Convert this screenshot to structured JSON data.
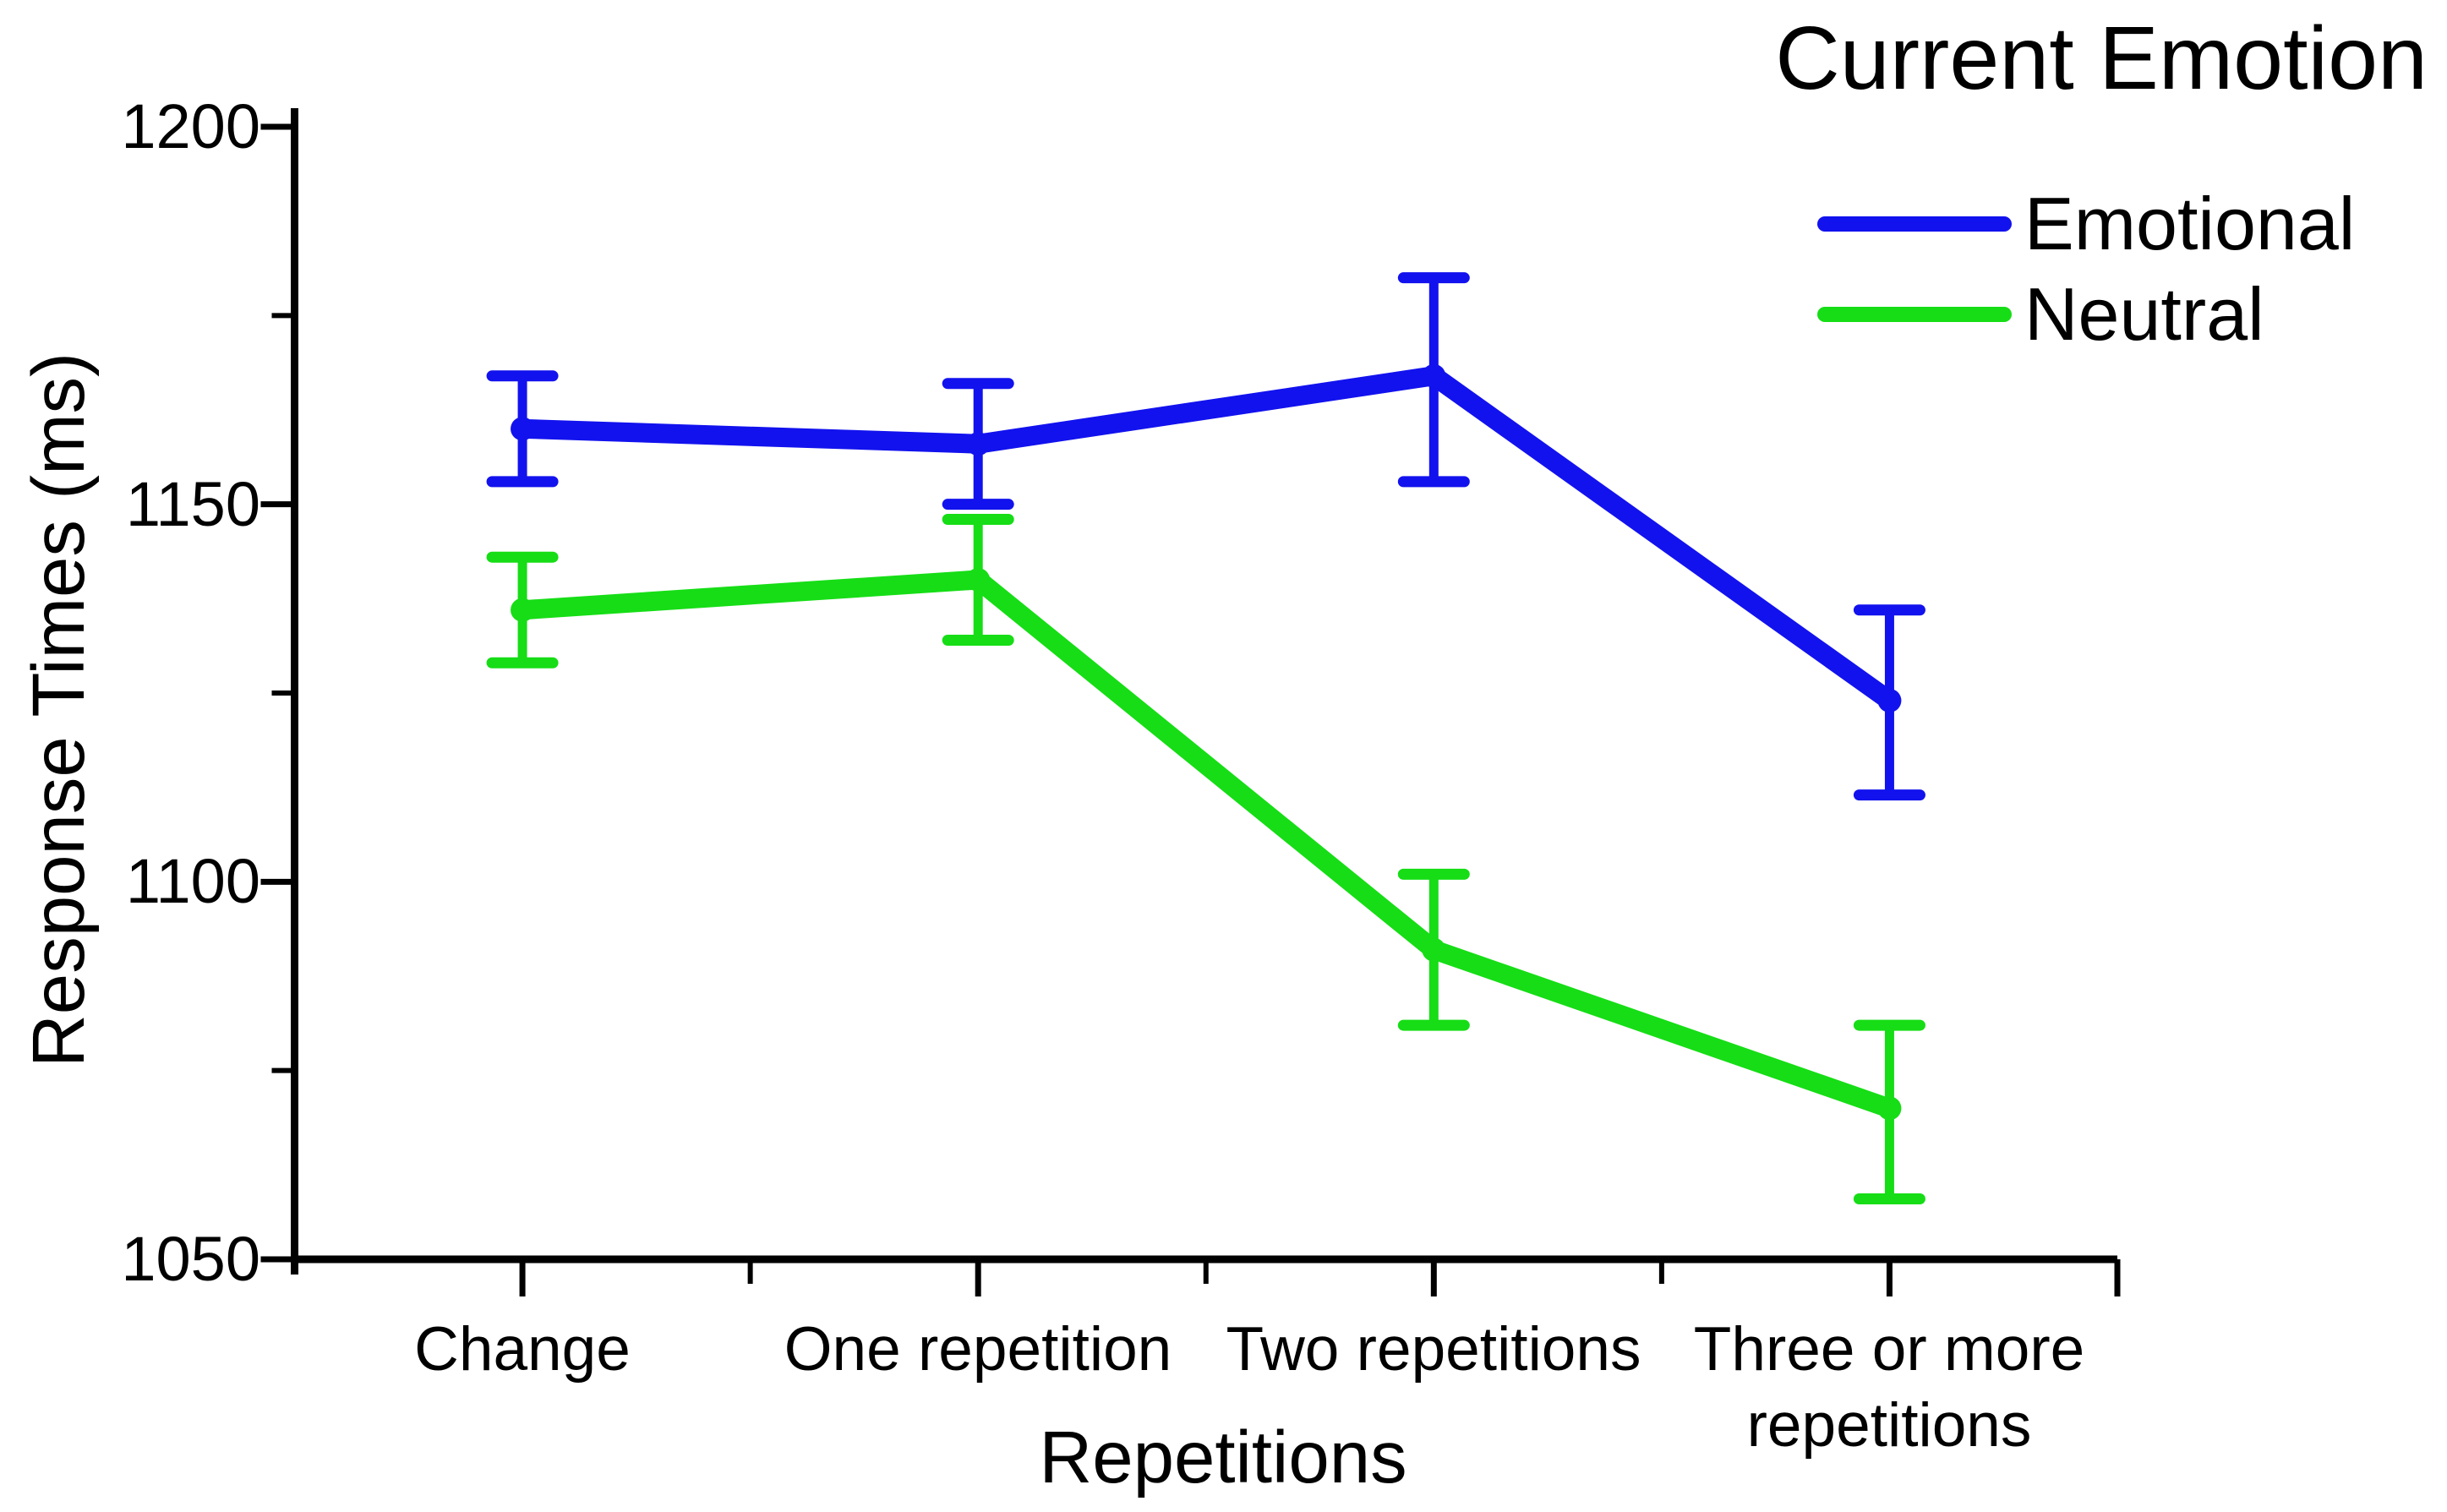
{
  "chart_data": {
    "type": "line",
    "legend_title": "Current Emotion",
    "xlabel": "Repetitions",
    "ylabel": "Response Times (ms)",
    "categories": [
      "Change",
      "One repetition",
      "Two repetitions",
      "Three or more repetitions"
    ],
    "x_tick_labels": [
      [
        "Change"
      ],
      [
        "One repetition"
      ],
      [
        "Two repetitions"
      ],
      [
        "Three or more",
        "repetitions"
      ]
    ],
    "yticks": [
      1200,
      1150,
      1100,
      1050
    ],
    "ylim": [
      1050,
      1200
    ],
    "grid": false,
    "legend_position": "top-right",
    "axis_color": "#000000",
    "series": [
      {
        "name": "Emotional",
        "color": "#1212ee",
        "values": [
          1160,
          1158,
          1167,
          1124
        ],
        "error_upper": [
          7,
          8,
          13,
          12
        ],
        "error_lower": [
          7,
          8,
          14,
          12.5
        ]
      },
      {
        "name": "Neutral",
        "color": "#16dd16",
        "values": [
          1136,
          1140,
          1091,
          1070
        ],
        "error_upper": [
          7,
          8,
          10,
          11
        ],
        "error_lower": [
          7,
          8,
          10,
          12
        ]
      }
    ]
  }
}
